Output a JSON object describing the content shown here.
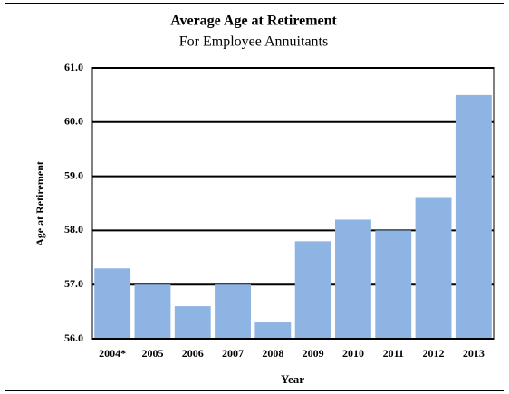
{
  "chart_data": {
    "type": "bar",
    "title": "Average Age at Retirement",
    "subtitle": "For Employee Annuitants",
    "x_label": "Year",
    "y_label": "Age at Retirement",
    "categories": [
      "2004*",
      "2005",
      "2006",
      "2007",
      "2008",
      "2009",
      "2010",
      "2011",
      "2012",
      "2013"
    ],
    "values": [
      57.3,
      57.0,
      56.6,
      57.0,
      56.3,
      57.8,
      58.2,
      58.0,
      58.6,
      60.5
    ],
    "color": "#8eb4e3",
    "ylim": [
      56,
      61
    ],
    "yticks": [
      {
        "value": 56,
        "label": "56.0"
      },
      {
        "value": 57,
        "label": "57.0"
      },
      {
        "value": 58,
        "label": "58.0"
      },
      {
        "value": 59,
        "label": "59.0"
      },
      {
        "value": 60,
        "label": "60.0"
      },
      {
        "value": 61,
        "label": "61.0"
      }
    ],
    "grid": true
  }
}
